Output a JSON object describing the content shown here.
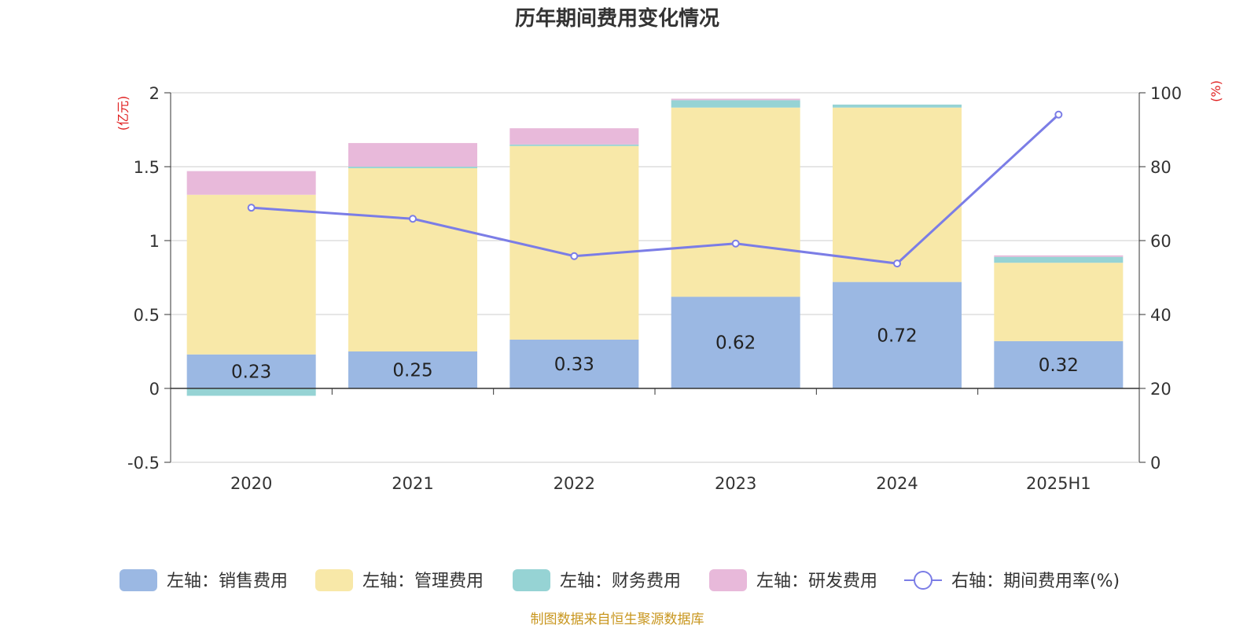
{
  "chart_data": {
    "type": "bar",
    "title": "历年期间费用变化情况",
    "categories": [
      "2020",
      "2021",
      "2022",
      "2023",
      "2024",
      "2025H1"
    ],
    "left_axis": {
      "unit": "(亿元)",
      "ylim": [
        -0.5,
        2
      ],
      "ticks": [
        "-0.5",
        "0",
        "0.5",
        "1",
        "1.5",
        "2"
      ]
    },
    "right_axis": {
      "unit": "(%)",
      "ylim": [
        0,
        100
      ],
      "ticks": [
        "0",
        "20",
        "40",
        "60",
        "80",
        "100"
      ]
    },
    "series": [
      {
        "name": "左轴：销售费用",
        "type": "bar",
        "axis": "left",
        "color": "#9bb8e3",
        "values": [
          0.23,
          0.25,
          0.33,
          0.62,
          0.72,
          0.32
        ],
        "labels": [
          "0.23",
          "0.25",
          "0.33",
          "0.62",
          "0.72",
          "0.32"
        ]
      },
      {
        "name": "左轴：管理费用",
        "type": "bar",
        "axis": "left",
        "color": "#f8e8a8",
        "values": [
          1.08,
          1.24,
          1.31,
          1.28,
          1.18,
          0.53
        ]
      },
      {
        "name": "左轴：财务费用",
        "type": "bar",
        "axis": "left",
        "color": "#96d3d4",
        "values": [
          -0.05,
          0.01,
          0.01,
          0.05,
          0.02,
          0.04
        ]
      },
      {
        "name": "左轴：研发费用",
        "type": "bar",
        "axis": "left",
        "color": "#e8b9da",
        "values": [
          0.16,
          0.16,
          0.11,
          0.01,
          0.0,
          0.01
        ]
      },
      {
        "name": "右轴：期间费用率(%)",
        "type": "line",
        "axis": "right",
        "color": "#7b7de6",
        "values": [
          68.9,
          65.9,
          55.8,
          59.2,
          53.8,
          94.1
        ]
      }
    ],
    "grid": true,
    "legend_position": "bottom"
  },
  "footer": {
    "source": "制图数据来自恒生聚源数据库"
  },
  "colors": {
    "axis_unit": "#e02020",
    "source_text": "#c8961e",
    "grid": "#cccccc"
  }
}
